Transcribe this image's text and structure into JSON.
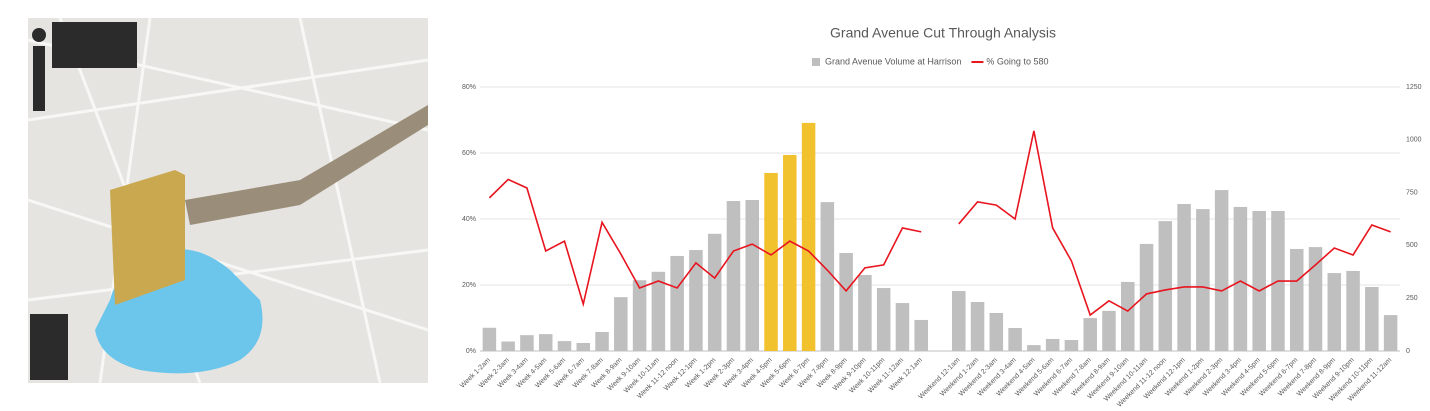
{
  "chart_data": {
    "type": "bar_line",
    "title": "Grand Avenue Cut Through Analysis",
    "categories": [
      "Week 1-2am",
      "Week 2-3am",
      "Week 3-4am",
      "Week 4-5am",
      "Week 5-6am",
      "Week 6-7am",
      "Week 7-8am",
      "Week 8-9am",
      "Week 9-10am",
      "Week 10-11am",
      "Week 11-12 noon",
      "Week 12-1pm",
      "Week 1-2pm",
      "Week 2-3pm",
      "Week 3-4pm",
      "Week 4-5pm",
      "Week 5-6pm",
      "Week 6-7pm",
      "Week 7-8pm",
      "Week 8-9pm",
      "Week 9-10pm",
      "Week 10-11pm",
      "Week 11-12am",
      "Week 12-1am",
      null,
      "Weekend 12-1am",
      "Weekend 1-2am",
      "Weekend 2-3am",
      "Weekend 3-4am",
      "Weekend 4-5am",
      "Weekend 5-6am",
      "Weekend 6-7am",
      "Weekend 7-8am",
      "Weekend 8-9am",
      "Weekend 9-10am",
      "Weekend 10-11am",
      "Weekend 11-12 noon",
      "Weekend 12-1pm",
      "Weekend 1-2pm",
      "Weekend 2-3pm",
      "Weekend 3-4pm",
      "Weekend 4-5pm",
      "Weekend 5-6pm",
      "Weekend 6-7pm",
      "Weekend 7-8pm",
      "Weekend 8-9pm",
      "Weekend 9-10pm",
      "Weekend 10-11pm",
      "Weekend 11-12am"
    ],
    "series": [
      {
        "name": "Grand Avenue Volume at Harrison",
        "kind": "bar",
        "axis": "y2",
        "color": "#bfbfbf",
        "colors": [
          "#bfbfbf",
          "#bfbfbf",
          "#bfbfbf",
          "#bfbfbf",
          "#bfbfbf",
          "#bfbfbf",
          "#bfbfbf",
          "#bfbfbf",
          "#bfbfbf",
          "#bfbfbf",
          "#bfbfbf",
          "#bfbfbf",
          "#bfbfbf",
          "#bfbfbf",
          "#bfbfbf",
          "#f2c12e",
          "#f2c12e",
          "#f2c12e",
          "#bfbfbf",
          "#bfbfbf",
          "#bfbfbf",
          "#bfbfbf",
          "#bfbfbf",
          "#bfbfbf",
          "#bfbfbf",
          "#bfbfbf",
          "#bfbfbf",
          "#bfbfbf",
          "#bfbfbf",
          "#bfbfbf",
          "#bfbfbf",
          "#bfbfbf",
          "#bfbfbf",
          "#bfbfbf",
          "#bfbfbf",
          "#bfbfbf",
          "#bfbfbf",
          "#bfbfbf",
          "#bfbfbf",
          "#bfbfbf",
          "#bfbfbf",
          "#bfbfbf",
          "#bfbfbf",
          "#bfbfbf",
          "#bfbfbf",
          "#bfbfbf",
          "#bfbfbf",
          "#bfbfbf",
          "#bfbfbf"
        ],
        "values": [
          110,
          45,
          75,
          80,
          47,
          38,
          90,
          255,
          335,
          375,
          450,
          478,
          555,
          710,
          715,
          843,
          928,
          1080,
          705,
          464,
          360,
          298,
          227,
          147,
          null,
          284,
          232,
          180,
          109,
          28,
          57,
          52,
          156,
          190,
          327,
          507,
          615,
          696,
          672,
          762,
          682,
          663,
          663,
          483,
          492,
          369,
          379,
          303,
          170
        ]
      },
      {
        "name": "% Going to 580",
        "kind": "line",
        "axis": "y",
        "color": "#e8141e",
        "values": [
          46.4,
          52,
          49.4,
          30.3,
          33.3,
          14.2,
          39,
          29.4,
          19.1,
          21.2,
          19.1,
          26.7,
          22.1,
          30.3,
          32.4,
          29.1,
          33.3,
          30.3,
          24.5,
          18.2,
          25.2,
          26.1,
          37.3,
          36.1,
          null,
          38.5,
          45.2,
          44.2,
          40,
          66.7,
          37.3,
          27.3,
          10.9,
          15.2,
          12.1,
          17.3,
          18.5,
          19.4,
          19.4,
          18.2,
          21.2,
          18.2,
          21.2,
          21.2,
          26.1,
          31.2,
          29.1,
          38.2,
          36.1
        ]
      }
    ],
    "ylim": [
      0,
      80
    ],
    "yticks": [
      {
        "value": 0,
        "label": "0%"
      },
      {
        "value": 20,
        "label": "20%"
      },
      {
        "value": 40,
        "label": "40%"
      },
      {
        "value": 60,
        "label": "60%"
      },
      {
        "value": 80,
        "label": "80%"
      }
    ],
    "y2lim": [
      0,
      1250
    ],
    "y2ticks": [
      0,
      250,
      500,
      750,
      1000,
      1250
    ],
    "grid": true,
    "legend": "top"
  }
}
